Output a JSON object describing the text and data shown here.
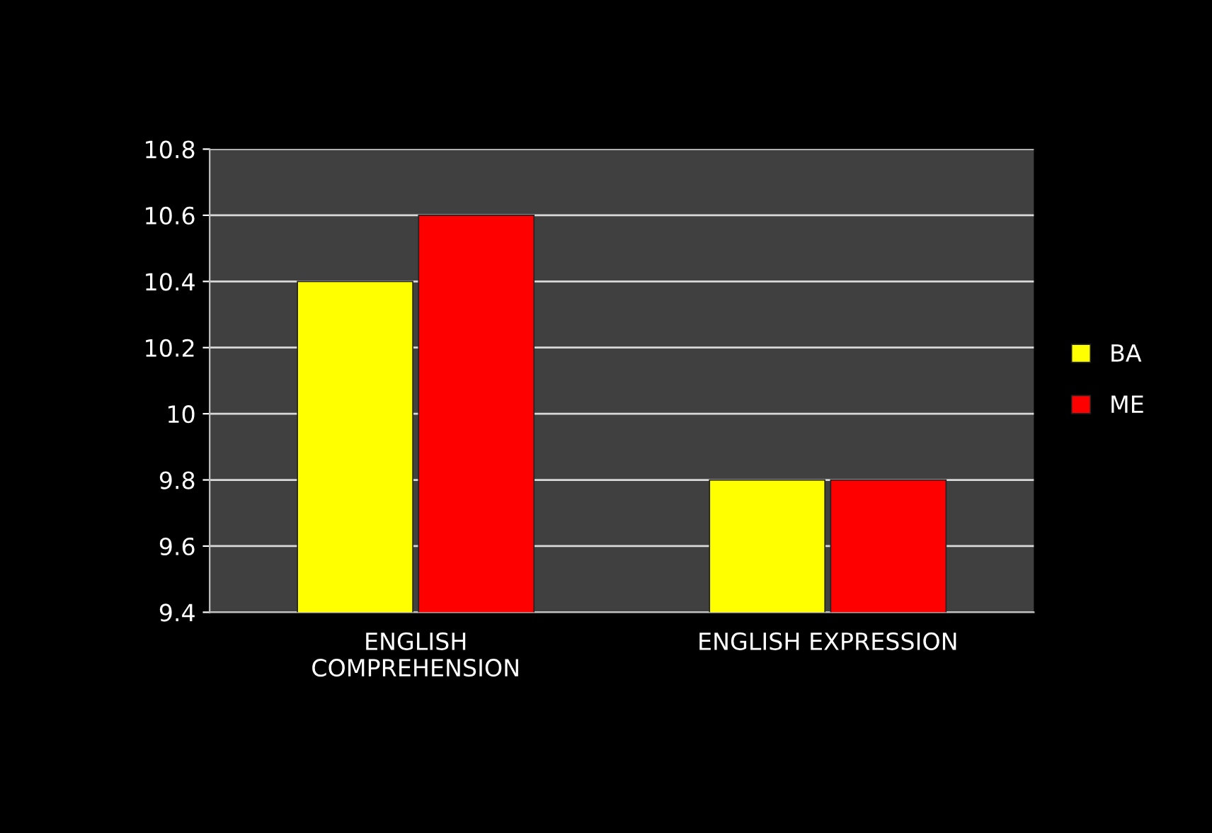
{
  "chart_data": {
    "type": "bar",
    "categories": [
      "ENGLISH COMPREHENSION",
      "ENGLISH EXPRESSION"
    ],
    "series": [
      {
        "name": "BA",
        "color": "#ffff00",
        "values": [
          10.4,
          9.8
        ]
      },
      {
        "name": "ME",
        "color": "#ff0000",
        "values": [
          10.6,
          9.8
        ]
      }
    ],
    "ylim": [
      9.4,
      10.8
    ],
    "yticks": [
      9.4,
      9.6,
      9.8,
      10,
      10.2,
      10.4,
      10.6,
      10.8
    ],
    "grid": "y",
    "legend": "right"
  }
}
